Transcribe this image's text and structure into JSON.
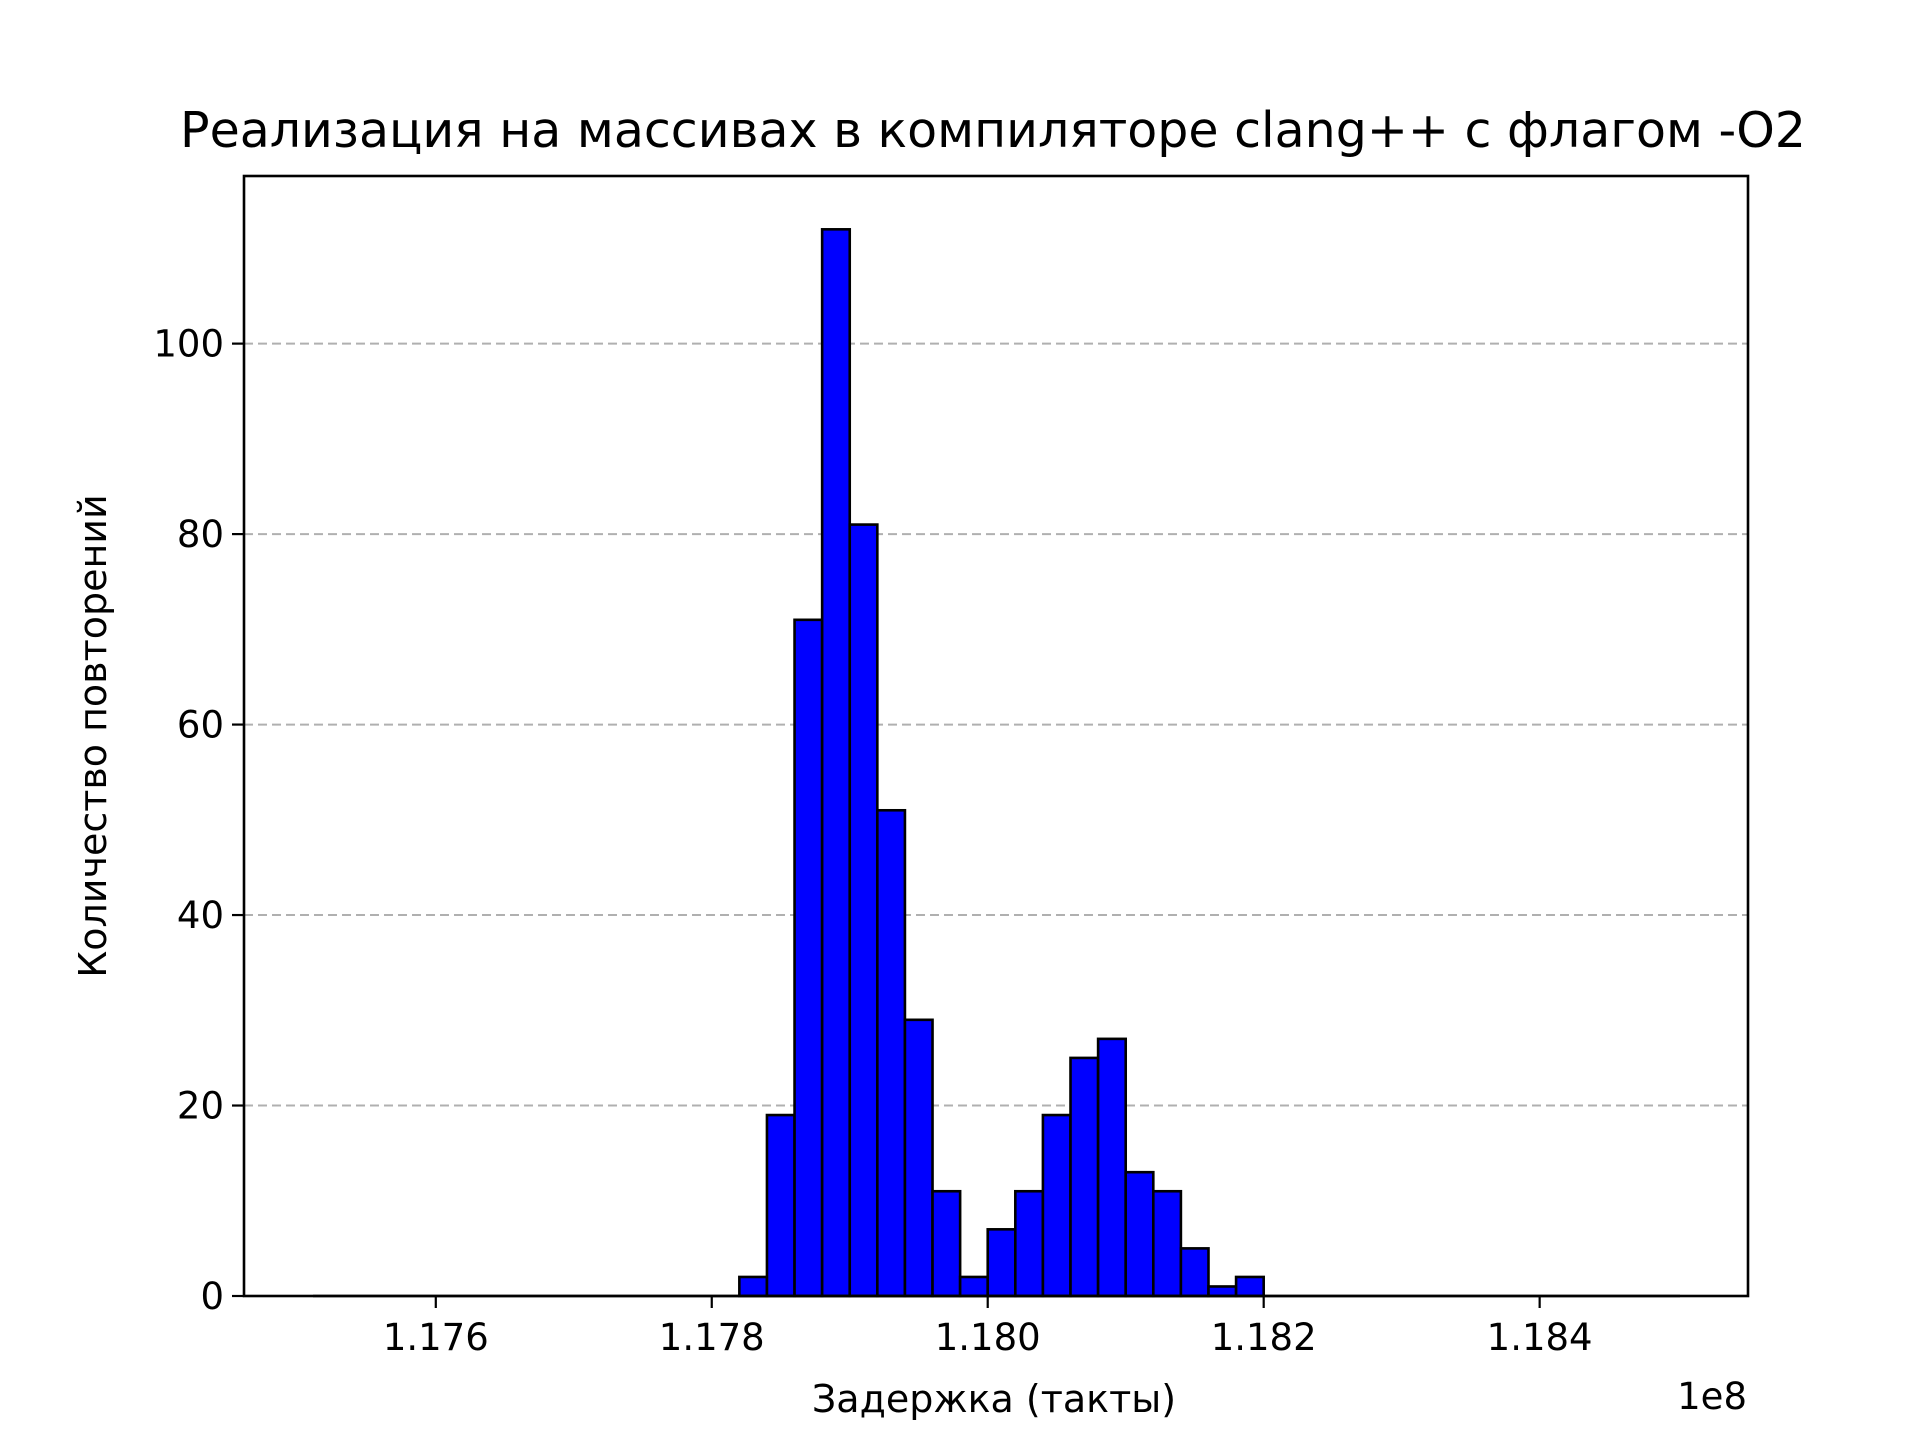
{
  "chart_data": {
    "type": "bar",
    "title": "Реализация на массивах в компиляторе clang++ с флагом -O2",
    "xlabel": "Задержка (такты)",
    "ylabel": "Количество повторений",
    "x_offset_label": "1e8",
    "xlim": [
      1.17461,
      1.18551
    ],
    "ylim": [
      0,
      117.6
    ],
    "x_ticks": [
      1.176,
      1.178,
      1.18,
      1.182,
      1.184
    ],
    "x_tick_labels": [
      "1.176",
      "1.178",
      "1.180",
      "1.182",
      "1.184"
    ],
    "y_ticks": [
      0,
      20,
      40,
      60,
      80,
      100
    ],
    "y_tick_labels": [
      "0",
      "20",
      "40",
      "60",
      "80",
      "100"
    ],
    "grid": "y-dashed",
    "bar_color": "#0000ff",
    "bin_edges": [
      1.175,
      1.1752,
      1.1754,
      1.1756,
      1.1758,
      1.176,
      1.1762,
      1.1764,
      1.1766,
      1.1768,
      1.177,
      1.1772,
      1.1774,
      1.1776,
      1.1778,
      1.178,
      1.1782,
      1.1784,
      1.1786,
      1.1788,
      1.179,
      1.1792,
      1.1794,
      1.1796,
      1.1798,
      1.18,
      1.1802,
      1.1804,
      1.1806,
      1.1808,
      1.181,
      1.1812,
      1.1814,
      1.1816,
      1.1818,
      1.182,
      1.1822,
      1.1824,
      1.1826,
      1.1828,
      1.183,
      1.1832,
      1.1834,
      1.1836,
      1.1838,
      1.184,
      1.1842,
      1.1844,
      1.1846,
      1.1848,
      1.185
    ],
    "values": [
      0,
      0,
      0,
      0,
      0,
      0,
      0,
      0,
      0,
      0,
      0,
      0,
      0,
      0,
      0,
      0,
      2,
      19,
      71,
      112,
      81,
      51,
      29,
      11,
      2,
      7,
      11,
      19,
      25,
      27,
      13,
      11,
      5,
      1,
      2,
      0,
      0,
      0,
      0,
      0,
      0,
      0,
      0,
      0,
      0,
      0,
      0,
      0,
      0,
      0
    ]
  }
}
